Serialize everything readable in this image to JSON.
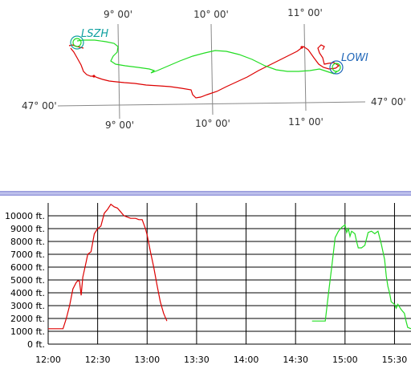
{
  "chart_data": [
    {
      "type": "map",
      "grid_labels_top": [
        "9° 00'",
        "10° 00'",
        "11° 00'"
      ],
      "grid_labels_bottom": [
        "9° 00'",
        "10° 00'",
        "11° 00'"
      ],
      "lat_label_left": "47° 00'",
      "lat_label_right": "47° 00'",
      "airports": [
        {
          "code": "LSZH",
          "color": "#0fa0a0"
        },
        {
          "code": "LOWI",
          "color": "#1f66b8"
        }
      ],
      "series": [
        {
          "color": "#dd0000"
        },
        {
          "color": "#22dd22"
        }
      ]
    },
    {
      "type": "line",
      "ylabel": "",
      "xlabel": "",
      "x_ticks": [
        "12:00",
        "12:30",
        "13:00",
        "13:30",
        "14:00",
        "14:30",
        "15:00",
        "15:30"
      ],
      "y_ticks": [
        "0 ft.",
        "1000 ft.",
        "2000 ft.",
        "3000 ft.",
        "4000 ft.",
        "5000 ft.",
        "6000 ft.",
        "7000 ft.",
        "8000 ft.",
        "9000 ft.",
        "10000 ft."
      ],
      "xlim_minutes_after_1200": [
        0,
        220
      ],
      "ylim": [
        0,
        11000
      ],
      "grid": true,
      "series": [
        {
          "color": "#dd0000",
          "points": [
            [
              "12:00",
              1200
            ],
            [
              "12:09",
              1200
            ],
            [
              "12:11",
              2000
            ],
            [
              "12:13",
              3000
            ],
            [
              "12:15",
              4300
            ],
            [
              "12:17",
              4800
            ],
            [
              "12:18",
              4950
            ],
            [
              "12:19",
              4900
            ],
            [
              "12:20",
              3800
            ],
            [
              "12:21",
              5200
            ],
            [
              "12:23",
              6400
            ],
            [
              "12:24",
              7000
            ],
            [
              "12:26",
              7200
            ],
            [
              "12:28",
              8600
            ],
            [
              "12:30",
              9000
            ],
            [
              "12:32",
              9200
            ],
            [
              "12:34",
              10200
            ],
            [
              "12:36",
              10500
            ],
            [
              "12:38",
              10900
            ],
            [
              "12:40",
              10700
            ],
            [
              "12:42",
              10600
            ],
            [
              "12:44",
              10300
            ],
            [
              "12:46",
              10000
            ],
            [
              "12:48",
              9900
            ],
            [
              "12:50",
              9800
            ],
            [
              "12:53",
              9800
            ],
            [
              "12:55",
              9700
            ],
            [
              "12:57",
              9700
            ],
            [
              "12:59",
              9000
            ],
            [
              "13:00",
              8500
            ],
            [
              "13:02",
              7200
            ],
            [
              "13:04",
              6000
            ],
            [
              "13:06",
              4600
            ],
            [
              "13:08",
              3300
            ],
            [
              "13:10",
              2400
            ],
            [
              "13:12",
              1800
            ]
          ]
        },
        {
          "color": "#22dd22",
          "points": [
            [
              "14:40",
              1800
            ],
            [
              "14:48",
              1800
            ],
            [
              "14:50",
              4000
            ],
            [
              "14:52",
              6100
            ],
            [
              "14:54",
              8300
            ],
            [
              "14:56",
              8800
            ],
            [
              "14:58",
              9100
            ],
            [
              "15:00",
              9300
            ],
            [
              "15:01",
              8700
            ],
            [
              "15:02",
              9000
            ],
            [
              "15:03",
              8400
            ],
            [
              "15:04",
              8800
            ],
            [
              "15:06",
              8600
            ],
            [
              "15:07",
              8000
            ],
            [
              "15:08",
              7500
            ],
            [
              "15:10",
              7500
            ],
            [
              "15:12",
              7700
            ],
            [
              "15:14",
              8700
            ],
            [
              "15:16",
              8800
            ],
            [
              "15:18",
              8600
            ],
            [
              "15:20",
              8800
            ],
            [
              "15:22",
              7800
            ],
            [
              "15:24",
              6600
            ],
            [
              "15:25",
              5300
            ],
            [
              "15:26",
              4500
            ],
            [
              "15:27",
              4000
            ],
            [
              "15:28",
              3300
            ],
            [
              "15:30",
              3100
            ],
            [
              "15:31",
              2800
            ],
            [
              "15:32",
              3100
            ],
            [
              "15:34",
              2700
            ],
            [
              "15:36",
              2400
            ],
            [
              "15:37",
              1800
            ],
            [
              "15:38",
              1300
            ],
            [
              "15:40",
              1200
            ]
          ]
        }
      ]
    }
  ]
}
